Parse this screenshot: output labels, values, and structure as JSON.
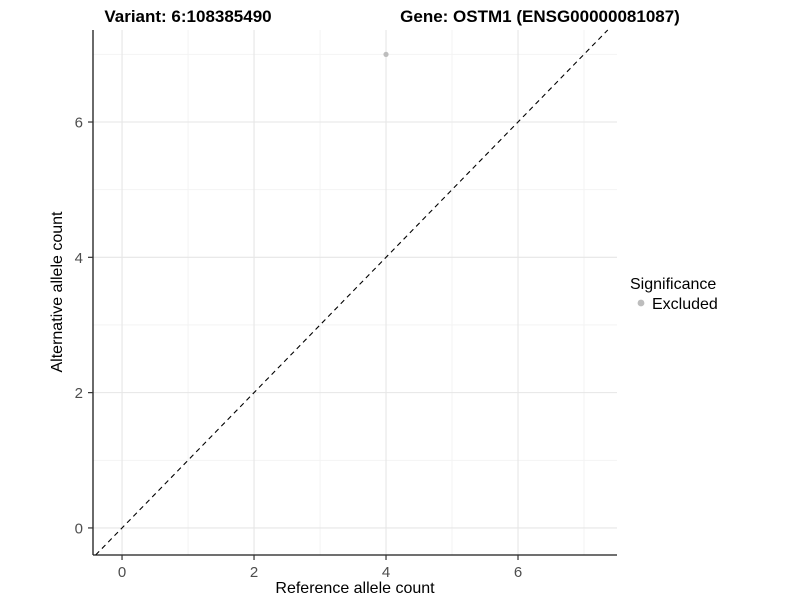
{
  "titles": {
    "left": "Variant: 6:108385490",
    "right": "Gene: OSTM1 (ENSG00000081087)"
  },
  "chart_data": {
    "type": "scatter",
    "title_left": "Variant: 6:108385490",
    "title_right": "Gene: OSTM1 (ENSG00000081087)",
    "xlabel": "Reference allele count",
    "ylabel": "Alternative allele count",
    "xlim": [
      -0.44,
      7.5
    ],
    "ylim": [
      -0.4,
      7.36
    ],
    "x_major_ticks": [
      0,
      2,
      4,
      6
    ],
    "x_minor_ticks": [
      1,
      3,
      5,
      7
    ],
    "y_major_ticks": [
      0,
      2,
      4,
      6
    ],
    "y_minor_ticks": [
      1,
      3,
      5,
      7
    ],
    "grid": true,
    "points": [
      {
        "x": 4,
        "y": 7,
        "series": "Excluded"
      }
    ],
    "reference_line": {
      "type": "identity",
      "style": "dashed",
      "color": "#000000"
    },
    "legend": {
      "title": "Significance",
      "position": "right",
      "entries": [
        {
          "label": "Excluded",
          "color": "#bdbdbd"
        }
      ]
    },
    "colors": {
      "point": "#bdbdbd",
      "grid_major": "#e6e6e6",
      "grid_minor": "#f2f2f2",
      "axis_line": "#1a1a1a",
      "tick_mark": "#333333",
      "tick_label": "#4d4d4d"
    }
  }
}
